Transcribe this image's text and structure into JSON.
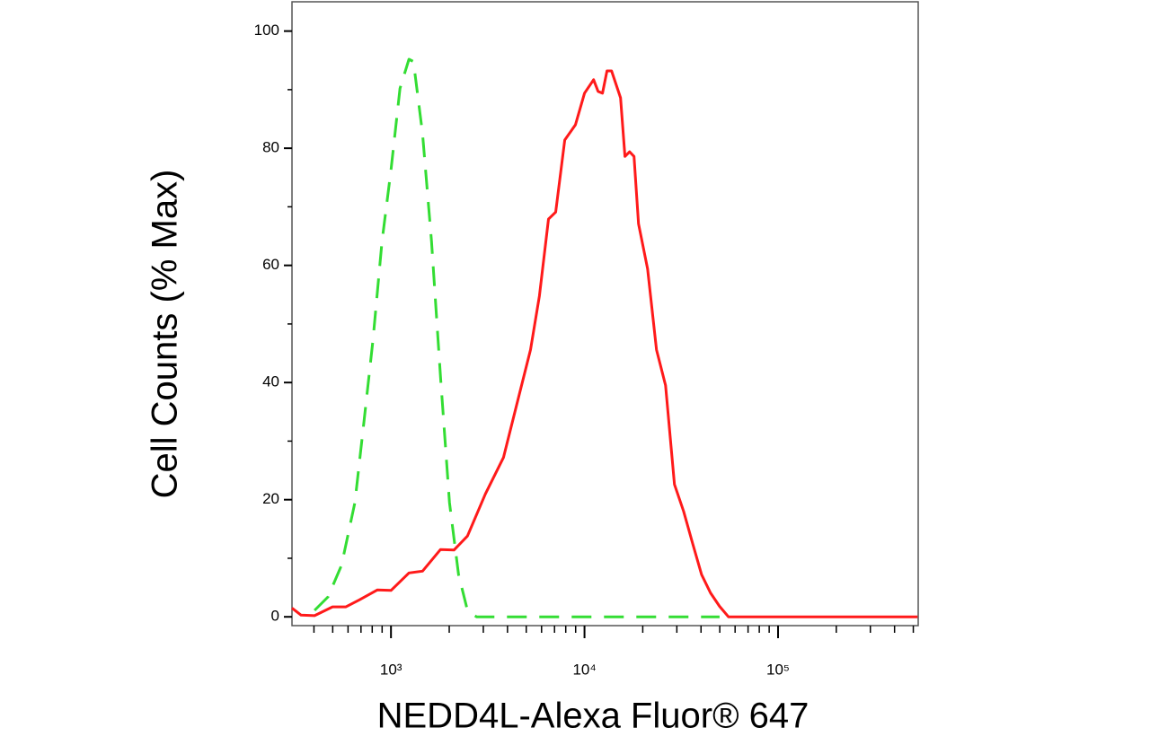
{
  "chart_data": {
    "type": "line",
    "x_label": "NEDD4L-Alexa Fluor® 647",
    "y_label": "Cell Counts (% Max)",
    "xscale": "log",
    "xlim": [
      308,
      530000
    ],
    "ylim": [
      -1.5,
      105
    ],
    "xticks": [
      {
        "value": 1000,
        "label": "10³"
      },
      {
        "value": 10000,
        "label": "10⁴"
      },
      {
        "value": 100000,
        "label": "10⁵"
      }
    ],
    "xminor_ticks": [
      400,
      500,
      600,
      700,
      800,
      900,
      2000,
      3000,
      4000,
      5000,
      6000,
      7000,
      8000,
      9000,
      20000,
      30000,
      40000,
      50000,
      60000,
      70000,
      80000,
      90000,
      200000,
      300000,
      400000,
      500000
    ],
    "yticks": [
      0,
      20,
      40,
      60,
      80,
      100
    ],
    "yminor_ticks": [
      10,
      30,
      50,
      70,
      90
    ],
    "series": [
      {
        "color": "#ff1a1a",
        "dashed": false,
        "x": [
          308,
          343,
          403,
          499,
          585,
          687,
          851,
          1000,
          1239,
          1455,
          1803,
          2117,
          2484,
          3076,
          3812,
          4477,
          5260,
          5848,
          6516,
          7096,
          7907,
          8975,
          10000,
          11140,
          11750,
          12390,
          13060,
          13800,
          15350,
          16180,
          17100,
          18030,
          19010,
          21180,
          23550,
          26240,
          29170,
          32510,
          36140,
          40270,
          44770,
          49890,
          55460,
          61800,
          76560,
          145500,
          526000
        ],
        "values": [
          1.5,
          0.3,
          0.2,
          1.7,
          1.7,
          2.9,
          4.6,
          4.5,
          7.5,
          7.8,
          11.5,
          11.4,
          13.8,
          21.0,
          27.2,
          36.4,
          45.6,
          54.8,
          67.9,
          69.1,
          81.4,
          84.0,
          89.4,
          91.7,
          89.7,
          89.4,
          93.2,
          93.2,
          88.6,
          78.6,
          79.4,
          78.6,
          67.1,
          59.4,
          45.6,
          39.5,
          22.6,
          18.0,
          12.6,
          7.2,
          4.1,
          1.8,
          0,
          0,
          0,
          0,
          0
        ]
      },
      {
        "color": "#33dd33",
        "dashed": true,
        "x": [
          403,
          473,
          555,
          651,
          725,
          807,
          899,
          1000,
          1113,
          1239,
          1307,
          1455,
          1620,
          1803,
          2007,
          2234,
          2484,
          2767,
          3812,
          5848,
          17100,
          49890
        ],
        "values": [
          1.1,
          3.4,
          8.8,
          19.5,
          33.3,
          47.2,
          64.1,
          76.3,
          90.2,
          95.2,
          94.8,
          82.5,
          64.1,
          41.0,
          19.5,
          7.2,
          1.1,
          0,
          0,
          0,
          0,
          0
        ]
      }
    ]
  }
}
